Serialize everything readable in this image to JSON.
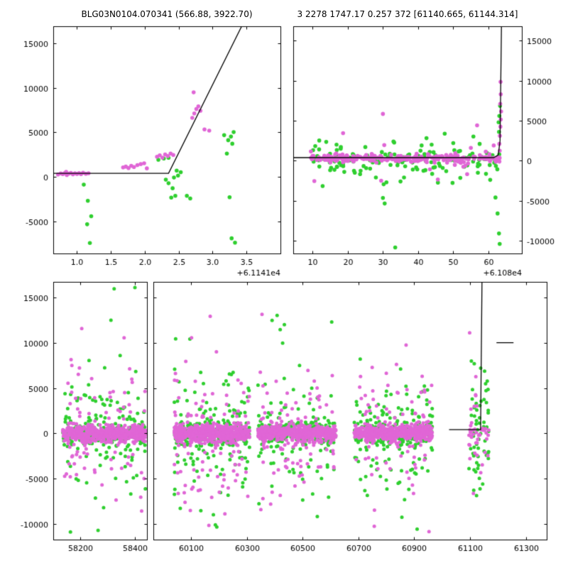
{
  "page": {
    "bg": "#ffffff"
  },
  "titles": {
    "left": "BLG03N0104.070341 (566.88, 3922.70)",
    "right": "3 2278 1747.17 0.257 372 [61140.665, 61144.314]"
  },
  "colors": {
    "magenta": "#e066d6",
    "green": "#2fcf2f",
    "line": "#000000",
    "axis": "#000000",
    "text": "#000000"
  },
  "chart_data": {
    "type": "scatter",
    "panels": {
      "top_left": {
        "xlim": [
          0.65,
          4.0
        ],
        "ylim": [
          -8600,
          16900
        ],
        "xticks": [
          1.0,
          1.5,
          2.0,
          2.5,
          3.0,
          3.5
        ],
        "xtick_labels": [
          "1.0",
          "1.5",
          "2.0",
          "2.5",
          "3.0",
          "3.5"
        ],
        "yticks": [
          -5000,
          0,
          5000,
          10000,
          15000
        ],
        "ytick_labels": [
          "-5000",
          "0",
          "5000",
          "10000",
          "15000"
        ],
        "x_offset_label": "+6.1141e4",
        "model_line": [
          [
            0.65,
            400
          ],
          [
            2.35,
            400
          ],
          [
            3.5,
            18000
          ]
        ],
        "magenta_points": [
          [
            0.72,
            260
          ],
          [
            0.76,
            380
          ],
          [
            0.79,
            300
          ],
          [
            0.82,
            430
          ],
          [
            0.85,
            210
          ],
          [
            0.88,
            360
          ],
          [
            0.91,
            440
          ],
          [
            0.94,
            290
          ],
          [
            0.97,
            400
          ],
          [
            1.0,
            330
          ],
          [
            1.03,
            420
          ],
          [
            1.06,
            300
          ],
          [
            1.09,
            470
          ],
          [
            1.13,
            350
          ],
          [
            1.17,
            410
          ],
          [
            0.84,
            560
          ],
          [
            1.68,
            1060
          ],
          [
            1.72,
            1150
          ],
          [
            1.76,
            990
          ],
          [
            1.8,
            1240
          ],
          [
            1.84,
            1100
          ],
          [
            1.89,
            1320
          ],
          [
            1.94,
            1430
          ],
          [
            1.99,
            1520
          ],
          [
            2.03,
            950
          ],
          [
            2.18,
            2260
          ],
          [
            2.22,
            2420
          ],
          [
            2.26,
            2160
          ],
          [
            2.3,
            2510
          ],
          [
            2.34,
            2330
          ],
          [
            2.38,
            2620
          ],
          [
            2.42,
            2460
          ],
          [
            2.7,
            6620
          ],
          [
            2.73,
            7120
          ],
          [
            2.76,
            7610
          ],
          [
            2.79,
            7920
          ],
          [
            2.72,
            9480
          ],
          [
            2.82,
            7420
          ],
          [
            2.88,
            5320
          ],
          [
            2.95,
            5180
          ]
        ],
        "green_points": [
          [
            1.1,
            -880
          ],
          [
            1.16,
            -2680
          ],
          [
            1.21,
            -4420
          ],
          [
            1.15,
            -5320
          ],
          [
            1.19,
            -7420
          ],
          [
            2.2,
            1920
          ],
          [
            2.28,
            2060
          ],
          [
            2.35,
            2140
          ],
          [
            2.31,
            -320
          ],
          [
            2.35,
            -720
          ],
          [
            2.41,
            -1280
          ],
          [
            2.45,
            -2120
          ],
          [
            2.39,
            -2330
          ],
          [
            2.49,
            140
          ],
          [
            2.53,
            520
          ],
          [
            2.47,
            700
          ],
          [
            2.43,
            -80
          ],
          [
            2.62,
            -2120
          ],
          [
            2.67,
            -2420
          ],
          [
            3.17,
            4680
          ],
          [
            3.23,
            4120
          ],
          [
            3.27,
            4520
          ],
          [
            3.21,
            2620
          ],
          [
            3.31,
            5020
          ],
          [
            3.29,
            3720
          ],
          [
            3.33,
            -7380
          ],
          [
            3.28,
            -6900
          ],
          [
            3.25,
            -2280
          ]
        ]
      },
      "top_right": {
        "xlim": [
          4.5,
          69.5
        ],
        "ylim": [
          -11600,
          16800
        ],
        "xticks": [
          10,
          20,
          30,
          40,
          50,
          60
        ],
        "xtick_labels": [
          "10",
          "20",
          "30",
          "40",
          "50",
          "60"
        ],
        "yticks": [
          -10000,
          -5000,
          0,
          5000,
          10000,
          15000
        ],
        "ytick_labels": [
          "-10000",
          "-5000",
          "0",
          "5000",
          "10000",
          "15000"
        ],
        "x_offset_label": "+6.108e4",
        "model_line": [
          [
            4.5,
            380
          ],
          [
            61.5,
            380
          ],
          [
            62.8,
            700
          ],
          [
            63.3,
            2500
          ],
          [
            63.7,
            16800
          ]
        ],
        "band": {
          "x0": 9.5,
          "x1": 63.2,
          "nm": 255,
          "ng": 140,
          "center": 300,
          "sd_m": 260,
          "sd_g": 780,
          "tail_m": 0.04,
          "tail_g": 0.22,
          "tail_sd": 1700,
          "ext_m": 0,
          "ext_g": 0.02,
          "ext_lo": -2600,
          "ext_hi": 2600,
          "seed": 7
        },
        "magenta_points": [
          [
            30,
            5850
          ],
          [
            63.45,
            9850
          ],
          [
            63.5,
            8300
          ],
          [
            63.35,
            7100
          ],
          [
            63.6,
            6150
          ],
          [
            63.5,
            5150
          ],
          [
            63.4,
            4250
          ],
          [
            63.25,
            3100
          ],
          [
            63.1,
            2100
          ],
          [
            63.2,
            1250
          ],
          [
            29.5,
            -2500
          ],
          [
            10.5,
            -2550
          ],
          [
            55,
            1600
          ],
          [
            61.5,
            1900
          ]
        ],
        "green_points": [
          [
            15,
            -1200
          ],
          [
            22,
            -1500
          ],
          [
            28,
            -2100
          ],
          [
            30,
            -4650
          ],
          [
            30.5,
            -5350
          ],
          [
            31,
            -2700
          ],
          [
            33.5,
            -10850
          ],
          [
            35,
            -2600
          ],
          [
            36,
            -2100
          ],
          [
            44,
            -1650
          ],
          [
            48,
            -1300
          ],
          [
            52,
            -2150
          ],
          [
            57,
            -1500
          ],
          [
            60.5,
            -2400
          ],
          [
            62,
            -4600
          ],
          [
            62.6,
            -6600
          ],
          [
            63,
            -9100
          ],
          [
            63.2,
            -10400
          ],
          [
            62.9,
            4800
          ],
          [
            63.1,
            5600
          ],
          [
            63.3,
            6850
          ],
          [
            50,
            2200
          ],
          [
            41,
            1900
          ],
          [
            25,
            1700
          ],
          [
            18,
            1500
          ],
          [
            33,
            2400
          ],
          [
            57.5,
            2100
          ],
          [
            47,
            -900
          ],
          [
            38.5,
            -1100
          ],
          [
            63.0,
            3600
          ]
        ]
      },
      "bottom": {
        "ylim": [
          -11700,
          16700
        ],
        "yticks": [
          -10000,
          -5000,
          0,
          5000,
          10000,
          15000
        ],
        "ytick_labels": [
          "-10000",
          "-5000",
          "0",
          "5000",
          "10000",
          "15000"
        ],
        "segments": [
          {
            "xlim": [
              58100,
              58445
            ],
            "xticks": [
              58200,
              58400
            ],
            "xtick_labels": [
              "58200",
              "58400"
            ]
          },
          {
            "xlim": [
              59965,
              61375
            ],
            "xticks": [
              60100,
              60300,
              60500,
              60700,
              60900,
              61100,
              61300
            ],
            "xtick_labels": [
              "60100",
              "60300",
              "60500",
              "60700",
              "60900",
              "61100",
              "61300"
            ]
          }
        ],
        "clusters": [
          {
            "x0": 58135,
            "x1": 58440,
            "nm": 620,
            "ng": 320,
            "center": 0,
            "sd_m": 430,
            "sd_g": 650,
            "tail_m": 0.15,
            "tail_g": 0.3,
            "tail_sd": 3200,
            "ext_m": 0.015,
            "ext_g": 0.04,
            "ext_lo": -10900,
            "ext_hi": 16300,
            "seed": 11
          },
          {
            "x0": 60040,
            "x1": 60310,
            "nm": 660,
            "ng": 340,
            "center": 0,
            "sd_m": 430,
            "sd_g": 650,
            "tail_m": 0.15,
            "tail_g": 0.3,
            "tail_sd": 3400,
            "ext_m": 0.015,
            "ext_g": 0.045,
            "ext_lo": -11200,
            "ext_hi": 16300,
            "seed": 12
          },
          {
            "x0": 60340,
            "x1": 60620,
            "nm": 620,
            "ng": 310,
            "center": 0,
            "sd_m": 420,
            "sd_g": 640,
            "tail_m": 0.13,
            "tail_g": 0.28,
            "tail_sd": 3000,
            "ext_m": 0.012,
            "ext_g": 0.035,
            "ext_lo": -10800,
            "ext_hi": 15600,
            "seed": 13
          },
          {
            "x0": 60685,
            "x1": 60965,
            "nm": 650,
            "ng": 330,
            "center": 0,
            "sd_m": 430,
            "sd_g": 650,
            "tail_m": 0.14,
            "tail_g": 0.3,
            "tail_sd": 3300,
            "ext_m": 0.014,
            "ext_g": 0.04,
            "ext_lo": -11000,
            "ext_hi": 16000,
            "seed": 14
          },
          {
            "x0": 61095,
            "x1": 61168,
            "nm": 45,
            "ng": 60,
            "center": 0,
            "sd_m": 800,
            "sd_g": 3600,
            "tail_m": 0.45,
            "tail_g": 0.3,
            "tail_sd": 5200,
            "ext_m": 0.02,
            "ext_g": 0.06,
            "ext_lo": -8400,
            "ext_hi": 9700,
            "seed": 15
          }
        ],
        "model_line": [
          [
            61025,
            420
          ],
          [
            61138,
            420
          ],
          [
            61143,
            16700
          ]
        ],
        "extra_lines": [
          [
            [
              61195,
              10000
            ],
            [
              61256,
              10000
            ]
          ]
        ]
      }
    }
  }
}
